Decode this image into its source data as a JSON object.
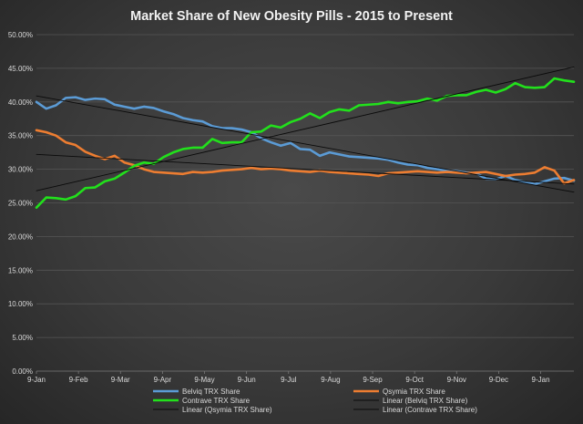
{
  "chart_data": {
    "type": "line",
    "title": "Market  Share  of  New Obesity   Pills  -  2015 to Present",
    "xlabel": "",
    "ylabel": "",
    "ylim": [
      0,
      50
    ],
    "y_ticks": [
      "0.00%",
      "5.00%",
      "10.00%",
      "15.00%",
      "20.00%",
      "25.00%",
      "30.00%",
      "35.00%",
      "40.00%",
      "45.00%",
      "50.00%"
    ],
    "x_ticks": [
      "9-Jan",
      "9-Feb",
      "9-Mar",
      "9-Apr",
      "9-May",
      "9-Jun",
      "9-Jul",
      "9-Aug",
      "9-Sep",
      "9-Oct",
      "9-Nov",
      "9-Dec",
      "9-Jan"
    ],
    "x_range": [
      0,
      55
    ],
    "grid": "horizontal",
    "legend_position": "bottom",
    "series": [
      {
        "name": "Belviq TRX Share",
        "color": "#5b9bd5",
        "width": 2.6,
        "x": [
          0,
          1,
          2,
          3,
          4,
          5,
          6,
          7,
          8,
          9,
          10,
          11,
          12,
          13,
          14,
          15,
          16,
          17,
          18,
          19,
          20,
          21,
          22,
          23,
          24,
          25,
          26,
          27,
          28,
          29,
          30,
          31,
          32,
          33,
          34,
          35,
          36,
          37,
          38,
          39,
          40,
          41,
          42,
          43,
          44,
          45,
          46,
          47,
          48,
          49,
          50,
          51,
          52,
          53,
          54,
          55
        ],
        "values": [
          40.0,
          39.0,
          39.5,
          40.6,
          40.7,
          40.3,
          40.5,
          40.4,
          39.6,
          39.3,
          39.0,
          39.3,
          39.1,
          38.6,
          38.2,
          37.6,
          37.3,
          37.1,
          36.4,
          36.1,
          36.1,
          35.9,
          35.5,
          34.6,
          34.0,
          33.5,
          33.9,
          33.0,
          32.9,
          32.0,
          32.5,
          32.2,
          31.9,
          31.8,
          31.7,
          31.6,
          31.4,
          31.0,
          30.7,
          30.6,
          30.2,
          30.0,
          29.8,
          29.7,
          29.5,
          29.4,
          28.6,
          28.5,
          29.0,
          28.4,
          28.1,
          27.8,
          28.2,
          28.6,
          28.7,
          28.3
        ]
      },
      {
        "name": "Qsymia TRX Share",
        "color": "#ed7d31",
        "width": 2.6,
        "x": [
          0,
          1,
          2,
          3,
          4,
          5,
          6,
          7,
          8,
          9,
          10,
          11,
          12,
          13,
          14,
          15,
          16,
          17,
          18,
          19,
          20,
          21,
          22,
          23,
          24,
          25,
          26,
          27,
          28,
          29,
          30,
          31,
          32,
          33,
          34,
          35,
          36,
          37,
          38,
          39,
          40,
          41,
          42,
          43,
          44,
          45,
          46,
          47,
          48,
          49,
          50,
          51,
          52,
          53,
          54,
          55
        ],
        "values": [
          35.8,
          35.5,
          35.0,
          34.0,
          33.6,
          32.6,
          32.0,
          31.5,
          32.0,
          31.0,
          30.6,
          30.0,
          29.6,
          29.5,
          29.4,
          29.3,
          29.6,
          29.5,
          29.6,
          29.8,
          29.9,
          30.0,
          30.2,
          30.0,
          30.1,
          30.0,
          29.8,
          29.7,
          29.6,
          29.8,
          29.6,
          29.5,
          29.4,
          29.3,
          29.2,
          29.0,
          29.4,
          29.5,
          29.6,
          29.7,
          29.6,
          29.5,
          29.6,
          29.5,
          29.4,
          29.5,
          29.6,
          29.3,
          29.0,
          29.2,
          29.3,
          29.5,
          30.3,
          29.8,
          27.9,
          28.4
        ]
      },
      {
        "name": "Contrave TRX Share",
        "color": "#22e01c",
        "width": 2.6,
        "x": [
          0,
          1,
          2,
          3,
          4,
          5,
          6,
          7,
          8,
          9,
          10,
          11,
          12,
          13,
          14,
          15,
          16,
          17,
          18,
          19,
          20,
          21,
          22,
          23,
          24,
          25,
          26,
          27,
          28,
          29,
          30,
          31,
          32,
          33,
          34,
          35,
          36,
          37,
          38,
          39,
          40,
          41,
          42,
          43,
          44,
          45,
          46,
          47,
          48,
          49,
          50,
          51,
          52,
          53,
          54,
          55
        ],
        "values": [
          24.3,
          25.8,
          25.7,
          25.5,
          26.0,
          27.2,
          27.3,
          28.2,
          28.6,
          29.5,
          30.5,
          31.0,
          30.8,
          31.8,
          32.5,
          33.0,
          33.2,
          33.2,
          34.5,
          33.9,
          34.0,
          34.0,
          35.5,
          35.6,
          36.5,
          36.2,
          37.0,
          37.5,
          38.3,
          37.6,
          38.5,
          38.9,
          38.7,
          39.5,
          39.6,
          39.7,
          40.0,
          39.8,
          40.0,
          40.1,
          40.5,
          40.2,
          40.9,
          41.0,
          41.0,
          41.5,
          41.8,
          41.4,
          41.9,
          42.8,
          42.2,
          42.1,
          42.2,
          43.5,
          43.2,
          43.0
        ]
      },
      {
        "name": "Linear (Belviq TRX Share)",
        "color": "#0a0a0a",
        "width": 0.9,
        "x": [
          0,
          55
        ],
        "values": [
          40.9,
          26.6
        ]
      },
      {
        "name": "Linear (Qsymia TRX Share)",
        "color": "#0a0a0a",
        "width": 0.9,
        "x": [
          0,
          55
        ],
        "values": [
          32.2,
          27.8
        ]
      },
      {
        "name": "Linear (Contrave TRX Share)",
        "color": "#0a0a0a",
        "width": 0.9,
        "x": [
          0,
          55
        ],
        "values": [
          26.8,
          45.2
        ]
      }
    ]
  }
}
